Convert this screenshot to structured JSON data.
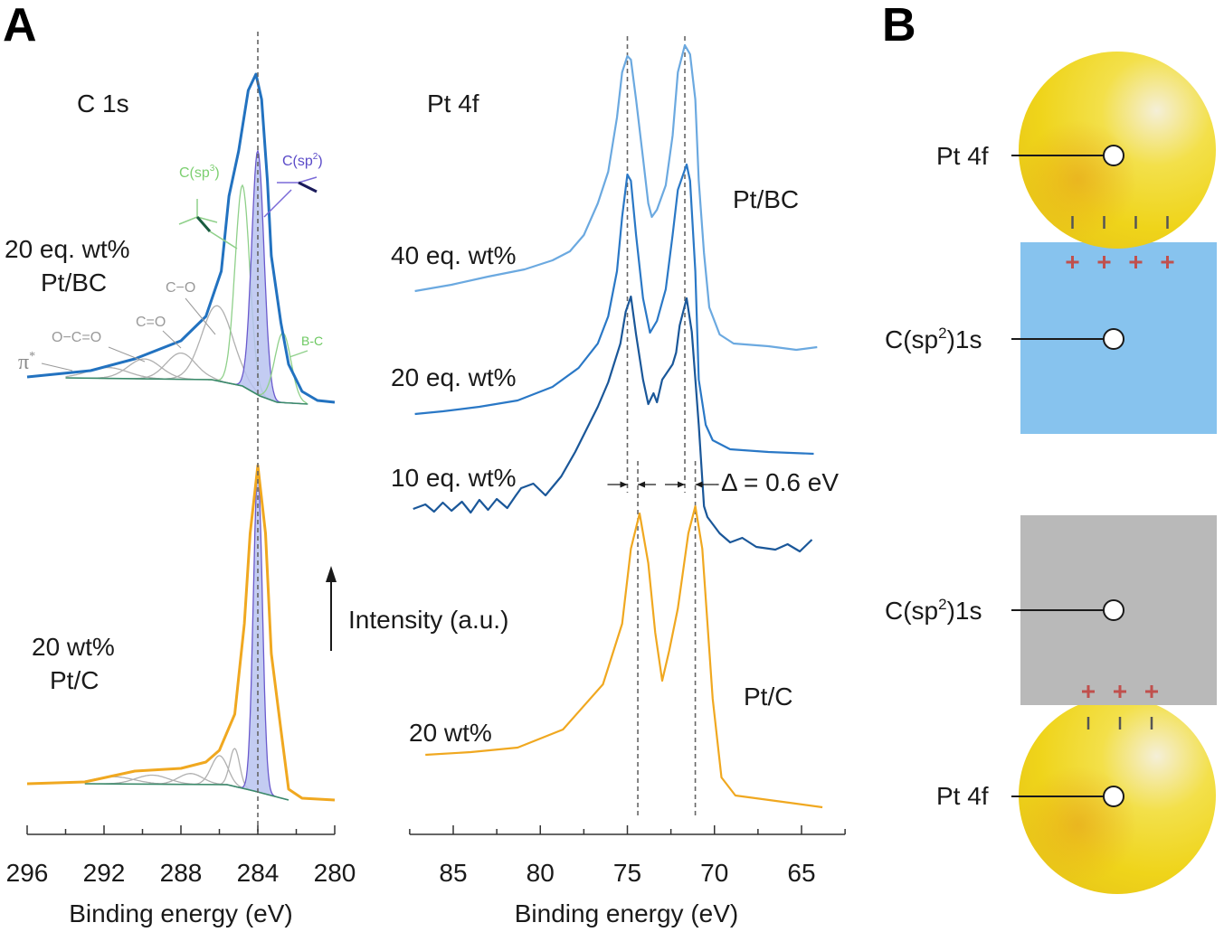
{
  "panel_letters": {
    "a": "A",
    "b": "B"
  },
  "y_axis_label": "Intensity (a.u.)",
  "colors": {
    "pt_bc_40": "#6ba9e0",
    "pt_bc_20": "#2a78c6",
    "pt_bc_10": "#1a5799",
    "c1s_pt_bc": "#2272c0",
    "pt_c": "#f0a820",
    "sp2_fill": "#b9c3f0",
    "sp2_line": "#6a5acd",
    "sp3_line": "#8fd08a",
    "minor_line": "#b0b0b0",
    "background_line": "#3a8a6a",
    "pt_particle": "#f3d81a",
    "bc_support": "#87c3ee",
    "c_support": "#b9b9b9",
    "plus_charge": "#c0504d"
  },
  "chart_data": [
    {
      "type": "line",
      "title": "C 1s",
      "xlabel": "Binding energy (eV)",
      "ylabel": "Intensity (a.u.)",
      "xlim": [
        296,
        280
      ],
      "x_reversed": true,
      "x_ticks": [
        296,
        292,
        288,
        284,
        280
      ],
      "x_minor_step": 2,
      "grid": false,
      "reference_lines": [
        284.0
      ],
      "series": [
        {
          "label_lines": [
            "20 eq. wt%",
            "Pt/BC"
          ],
          "color_key": "c1s_pt_bc",
          "points": [
            [
              296.0,
              5.13
            ],
            [
              292.7,
              5.2
            ],
            [
              290.4,
              5.33
            ],
            [
              288.0,
              5.53
            ],
            [
              286.7,
              5.8
            ],
            [
              285.9,
              6.3
            ],
            [
              285.5,
              7.13
            ],
            [
              285.0,
              7.63
            ],
            [
              284.5,
              8.3
            ],
            [
              284.1,
              8.48
            ],
            [
              283.8,
              8.2
            ],
            [
              283.5,
              7.3
            ],
            [
              283.3,
              6.47
            ],
            [
              282.8,
              5.73
            ],
            [
              282.4,
              5.27
            ],
            [
              281.7,
              4.97
            ],
            [
              280.9,
              4.87
            ],
            [
              280.0,
              4.85
            ]
          ],
          "background": [
            [
              294.0,
              5.12
            ],
            [
              286.4,
              5.1
            ],
            [
              284.8,
              5.03
            ],
            [
              283.9,
              4.92
            ],
            [
              283.0,
              4.85
            ],
            [
              281.4,
              4.83
            ]
          ],
          "components": [
            {
              "label": {
                "pre": "π",
                "sup": "*",
                "post": ""
              },
              "center": 291.8,
              "height": 0.12,
              "fwhm": 2.5,
              "style": "minor"
            },
            {
              "label": {
                "pre": "O−C=O",
                "sup": "",
                "post": ""
              },
              "center": 289.9,
              "height": 0.22,
              "fwhm": 2.0,
              "style": "minor"
            },
            {
              "label": {
                "pre": "C=O",
                "sup": "",
                "post": ""
              },
              "center": 288.0,
              "height": 0.29,
              "fwhm": 1.8,
              "style": "minor"
            },
            {
              "label": {
                "pre": "C−O",
                "sup": "",
                "post": ""
              },
              "center": 286.1,
              "height": 0.83,
              "fwhm": 1.9,
              "style": "minor"
            },
            {
              "label": {
                "pre": "C(sp",
                "sup": "3",
                "post": ")"
              },
              "center": 284.8,
              "height": 2.22,
              "fwhm": 0.9,
              "style": "sp3"
            },
            {
              "label": {
                "pre": "C(sp",
                "sup": "2",
                "post": ")"
              },
              "center": 284.0,
              "height": 2.7,
              "fwhm": 0.75,
              "style": "sp2"
            },
            {
              "label": {
                "pre": "B-C",
                "sup": "",
                "post": ""
              },
              "center": 282.7,
              "height": 0.77,
              "fwhm": 1.0,
              "style": "sp3"
            }
          ]
        },
        {
          "label_lines": [
            "20 wt%",
            "Pt/C"
          ],
          "color_key": "pt_c",
          "points": [
            [
              296.0,
              0.63
            ],
            [
              293.0,
              0.65
            ],
            [
              290.4,
              0.77
            ],
            [
              288.0,
              0.8
            ],
            [
              286.7,
              0.87
            ],
            [
              286.0,
              1.0
            ],
            [
              285.2,
              1.4
            ],
            [
              284.7,
              2.4
            ],
            [
              284.4,
              3.4
            ],
            [
              284.0,
              4.15
            ],
            [
              283.6,
              3.4
            ],
            [
              283.3,
              2.07
            ],
            [
              282.8,
              1.23
            ],
            [
              282.4,
              0.57
            ],
            [
              281.7,
              0.47
            ],
            [
              280.0,
              0.45
            ]
          ],
          "background": [
            [
              293.0,
              0.63
            ],
            [
              285.6,
              0.62
            ],
            [
              284.2,
              0.55
            ],
            [
              283.3,
              0.5
            ],
            [
              282.4,
              0.45
            ]
          ],
          "components": [
            {
              "center": 291.5,
              "height": 0.08,
              "fwhm": 2.5,
              "style": "minor"
            },
            {
              "center": 289.5,
              "height": 0.1,
              "fwhm": 2.0,
              "style": "minor"
            },
            {
              "center": 287.5,
              "height": 0.12,
              "fwhm": 1.5,
              "style": "minor"
            },
            {
              "center": 286.0,
              "height": 0.32,
              "fwhm": 1.0,
              "style": "minor"
            },
            {
              "center": 285.2,
              "height": 0.42,
              "fwhm": 0.6,
              "style": "minor"
            },
            {
              "center": 284.0,
              "height": 3.55,
              "fwhm": 0.55,
              "style": "sp2"
            }
          ]
        }
      ]
    },
    {
      "type": "line",
      "title": "Pt 4f",
      "xlabel": "Binding energy (eV)",
      "ylabel": "Intensity (a.u.)",
      "xlim": [
        87.5,
        62.5
      ],
      "x_reversed": true,
      "x_ticks": [
        85,
        80,
        75,
        70,
        65
      ],
      "x_minor_step": 2.5,
      "grid": false,
      "reference_lines_pt_bc": [
        75.0,
        71.7
      ],
      "reference_lines_pt_c": [
        74.4,
        71.1
      ],
      "annotation": "Δ = 0.6 eV",
      "group_labels": {
        "pt_bc": "Pt/BC",
        "pt_c": "Pt/C"
      },
      "series": [
        {
          "name": "40 eq. wt%",
          "color_key": "pt_bc_40",
          "points": [
            [
              87.2,
              6.08
            ],
            [
              85.1,
              6.15
            ],
            [
              83.0,
              6.24
            ],
            [
              80.9,
              6.32
            ],
            [
              79.3,
              6.42
            ],
            [
              78.3,
              6.52
            ],
            [
              77.5,
              6.7
            ],
            [
              76.7,
              7.05
            ],
            [
              76.1,
              7.4
            ],
            [
              75.6,
              8.0
            ],
            [
              75.3,
              8.5
            ],
            [
              75.0,
              8.68
            ],
            [
              74.8,
              8.64
            ],
            [
              74.5,
              8.2
            ],
            [
              74.1,
              7.55
            ],
            [
              73.8,
              7.05
            ],
            [
              73.6,
              6.9
            ],
            [
              73.3,
              6.98
            ],
            [
              72.8,
              7.25
            ],
            [
              72.4,
              7.8
            ],
            [
              72.1,
              8.5
            ],
            [
              71.7,
              8.8
            ],
            [
              71.4,
              8.7
            ],
            [
              71.1,
              8.2
            ],
            [
              70.9,
              7.3
            ],
            [
              70.6,
              6.5
            ],
            [
              70.3,
              5.9
            ],
            [
              69.7,
              5.6
            ],
            [
              68.9,
              5.5
            ],
            [
              66.9,
              5.47
            ],
            [
              65.3,
              5.43
            ],
            [
              64.1,
              5.46
            ]
          ]
        },
        {
          "name": "20 eq. wt%",
          "color_key": "pt_bc_20",
          "points": [
            [
              87.2,
              4.72
            ],
            [
              85.6,
              4.75
            ],
            [
              83.5,
              4.8
            ],
            [
              81.3,
              4.87
            ],
            [
              79.3,
              5.02
            ],
            [
              77.8,
              5.23
            ],
            [
              76.7,
              5.5
            ],
            [
              76.1,
              5.8
            ],
            [
              75.6,
              6.3
            ],
            [
              75.3,
              6.9
            ],
            [
              75.0,
              7.37
            ],
            [
              74.8,
              7.3
            ],
            [
              74.5,
              6.7
            ],
            [
              74.1,
              6.0
            ],
            [
              73.7,
              5.62
            ],
            [
              73.3,
              5.75
            ],
            [
              72.8,
              6.1
            ],
            [
              72.4,
              6.7
            ],
            [
              72.1,
              7.2
            ],
            [
              71.6,
              7.48
            ],
            [
              71.4,
              7.3
            ],
            [
              71.1,
              6.3
            ],
            [
              70.9,
              5.1
            ],
            [
              70.5,
              4.6
            ],
            [
              70.1,
              4.43
            ],
            [
              69.1,
              4.33
            ],
            [
              66.9,
              4.3
            ],
            [
              64.3,
              4.28
            ]
          ]
        },
        {
          "name": "10 eq. wt%",
          "color_key": "pt_bc_10",
          "points": [
            [
              87.3,
              3.67
            ],
            [
              86.6,
              3.72
            ],
            [
              86.1,
              3.64
            ],
            [
              85.6,
              3.74
            ],
            [
              85.1,
              3.65
            ],
            [
              84.5,
              3.75
            ],
            [
              84.0,
              3.63
            ],
            [
              83.5,
              3.77
            ],
            [
              83.0,
              3.66
            ],
            [
              82.5,
              3.78
            ],
            [
              81.9,
              3.68
            ],
            [
              81.4,
              3.82
            ],
            [
              81.1,
              3.9
            ],
            [
              80.4,
              3.95
            ],
            [
              79.7,
              3.82
            ],
            [
              78.8,
              4.03
            ],
            [
              78.0,
              4.3
            ],
            [
              77.4,
              4.53
            ],
            [
              76.7,
              4.8
            ],
            [
              76.1,
              5.07
            ],
            [
              75.4,
              5.5
            ],
            [
              75.1,
              5.85
            ],
            [
              74.8,
              6.02
            ],
            [
              74.5,
              5.6
            ],
            [
              74.1,
              5.1
            ],
            [
              73.8,
              4.83
            ],
            [
              73.5,
              4.95
            ],
            [
              73.3,
              4.85
            ],
            [
              73.0,
              5.1
            ],
            [
              72.4,
              5.27
            ],
            [
              72.2,
              5.4
            ],
            [
              72.0,
              5.7
            ],
            [
              71.6,
              6.0
            ],
            [
              71.3,
              5.63
            ],
            [
              70.9,
              4.6
            ],
            [
              70.6,
              3.7
            ],
            [
              70.4,
              3.58
            ],
            [
              69.7,
              3.4
            ],
            [
              69.1,
              3.3
            ],
            [
              68.4,
              3.35
            ],
            [
              67.6,
              3.25
            ],
            [
              66.5,
              3.22
            ],
            [
              65.8,
              3.28
            ],
            [
              65.1,
              3.2
            ],
            [
              64.4,
              3.33
            ]
          ]
        },
        {
          "name": "20 wt%",
          "color_key": "pt_c",
          "points": [
            [
              86.6,
              0.95
            ],
            [
              84.0,
              0.98
            ],
            [
              81.3,
              1.03
            ],
            [
              78.7,
              1.23
            ],
            [
              76.4,
              1.73
            ],
            [
              75.3,
              2.4
            ],
            [
              74.8,
              3.23
            ],
            [
              74.3,
              3.62
            ],
            [
              73.8,
              3.07
            ],
            [
              73.4,
              2.3
            ],
            [
              73.0,
              1.77
            ],
            [
              72.6,
              2.1
            ],
            [
              72.1,
              2.57
            ],
            [
              71.5,
              3.4
            ],
            [
              71.1,
              3.7
            ],
            [
              70.7,
              3.23
            ],
            [
              70.1,
              1.57
            ],
            [
              69.6,
              0.7
            ],
            [
              68.8,
              0.5
            ],
            [
              65.7,
              0.42
            ],
            [
              63.8,
              0.37
            ]
          ]
        }
      ]
    }
  ],
  "schematic": {
    "top": {
      "particle_label": "Pt 4f",
      "support_label": {
        "pre": "C(sp",
        "sup": "2",
        "post": ")1s"
      },
      "interface_charges": 4
    },
    "bottom": {
      "support_label": {
        "pre": "C(sp",
        "sup": "2",
        "post": ")1s"
      },
      "particle_label": "Pt 4f",
      "interface_charges": 3
    }
  }
}
